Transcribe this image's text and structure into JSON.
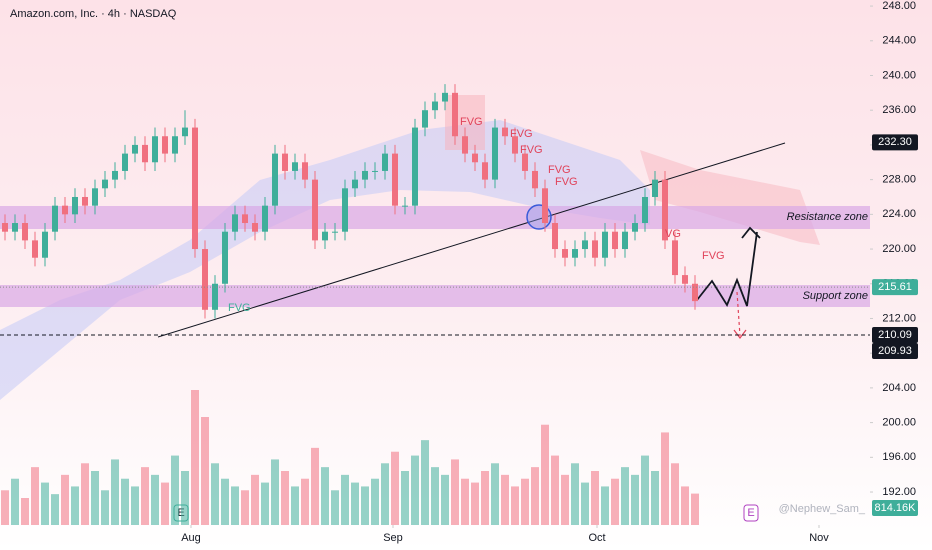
{
  "chart_data": {
    "type": "candlestick",
    "title": "Amazon.com, Inc. · 4h · NASDAQ",
    "open": [
      223,
      222,
      223,
      221,
      219,
      222,
      225,
      224,
      226,
      225,
      227,
      228,
      229,
      231,
      232,
      230,
      233,
      231,
      233,
      234,
      220,
      213,
      216,
      222,
      224,
      223,
      222,
      225,
      231,
      229,
      230,
      228,
      221,
      222,
      222,
      227,
      228,
      229,
      229,
      231,
      225,
      225,
      234,
      236,
      237,
      238,
      233,
      231,
      230,
      228,
      234,
      233,
      231,
      229,
      227,
      223,
      220,
      219,
      220,
      221,
      219,
      222,
      220,
      222,
      223,
      226,
      228,
      221,
      217,
      216
    ],
    "high": [
      224,
      224,
      224,
      222,
      223,
      226,
      226,
      227,
      227,
      228,
      229,
      230,
      232,
      233,
      233,
      234,
      234,
      234,
      236,
      235,
      221,
      217,
      223,
      225,
      225,
      224,
      226,
      232,
      232,
      231,
      231,
      229,
      223,
      223,
      228,
      229,
      230,
      230,
      232,
      232,
      226,
      235,
      237,
      238,
      239,
      239,
      234,
      232,
      231,
      235,
      235,
      234,
      232,
      230,
      228,
      224,
      221,
      221,
      222,
      222,
      223,
      223,
      223,
      224,
      227,
      229,
      229,
      222,
      218,
      217
    ],
    "low": [
      221,
      221,
      220,
      218,
      218,
      221,
      223,
      223,
      224,
      224,
      226,
      227,
      228,
      230,
      229,
      229,
      230,
      230,
      232,
      219,
      212,
      212,
      215,
      221,
      222,
      221,
      221,
      224,
      228,
      228,
      227,
      220,
      220,
      221,
      221,
      226,
      227,
      228,
      228,
      224,
      224,
      224,
      233,
      235,
      236,
      232,
      230,
      229,
      227,
      227,
      232,
      230,
      228,
      226,
      222,
      219,
      218,
      218,
      219,
      218,
      218,
      219,
      219,
      221,
      222,
      225,
      220,
      216,
      215,
      213
    ],
    "close": [
      222,
      223,
      221,
      219,
      222,
      225,
      224,
      226,
      225,
      227,
      228,
      229,
      231,
      232,
      230,
      233,
      231,
      233,
      234,
      220,
      213,
      216,
      222,
      224,
      223,
      222,
      225,
      231,
      229,
      230,
      228,
      221,
      222,
      222,
      227,
      228,
      229,
      229,
      231,
      225,
      225,
      234,
      236,
      237,
      238,
      233,
      231,
      230,
      228,
      234,
      233,
      231,
      229,
      227,
      223,
      220,
      219,
      220,
      221,
      219,
      222,
      220,
      222,
      223,
      226,
      228,
      221,
      217,
      216,
      214
    ],
    "volume": [
      900,
      1200,
      700,
      1500,
      1100,
      800,
      1300,
      1000,
      1600,
      1400,
      900,
      1700,
      1200,
      1000,
      1500,
      1300,
      1100,
      1800,
      1400,
      3500,
      2800,
      1600,
      1200,
      1000,
      900,
      1300,
      1100,
      1700,
      1400,
      1000,
      1200,
      2000,
      1500,
      900,
      1300,
      1100,
      1000,
      1200,
      1600,
      1900,
      1400,
      1800,
      2200,
      1500,
      1300,
      1700,
      1200,
      1100,
      1400,
      1600,
      1300,
      1000,
      1200,
      1500,
      2600,
      1800,
      1300,
      1600,
      1100,
      1400,
      1000,
      1200,
      1500,
      1300,
      1800,
      1400,
      2400,
      1600,
      1000,
      814.16
    ],
    "volume_tag": "814.16K",
    "up_color": "#3fae9a",
    "down_color": "#f0707f",
    "xlim": [
      0,
      87
    ],
    "xticks": [
      {
        "value": 19.1,
        "label": "Aug"
      },
      {
        "value": 39.3,
        "label": "Sep"
      },
      {
        "value": 59.7,
        "label": "Oct"
      },
      {
        "value": 81.9,
        "label": "Nov"
      }
    ],
    "ylim": [
      188.2,
      248.7
    ],
    "yticks": [
      {
        "value": 192,
        "label": "192.00"
      },
      {
        "value": 196,
        "label": "196.00"
      },
      {
        "value": 200,
        "label": "200.00"
      },
      {
        "value": 204,
        "label": "204.00"
      },
      {
        "value": 208,
        "label": "208.00"
      },
      {
        "value": 212,
        "label": "212.00"
      },
      {
        "value": 216,
        "label": "216.00"
      },
      {
        "value": 220,
        "label": "220.00"
      },
      {
        "value": 224,
        "label": "224.00"
      },
      {
        "value": 228,
        "label": "228.00"
      },
      {
        "value": 232,
        "label": "232.00"
      },
      {
        "value": 236,
        "label": "236.00"
      },
      {
        "value": 240,
        "label": "240.00"
      },
      {
        "value": 244,
        "label": "244.00"
      },
      {
        "value": 248,
        "label": "248.00"
      }
    ],
    "price_tags": [
      {
        "value": 232.3,
        "label": "232.30",
        "color": "#131722"
      },
      {
        "value": 215.61,
        "label": "215.61",
        "color": "#3fae9a"
      },
      {
        "value": 210.09,
        "label": "210.09",
        "color": "#131722"
      },
      {
        "value": 209.93,
        "label": "209.93",
        "color": "#131722"
      }
    ],
    "zones": [
      "Resistance zone",
      "Support zone"
    ],
    "fvg_labels": [
      "FVG",
      "FVG",
      "FVG",
      "FVG",
      "FVG",
      "FVG",
      "VG",
      "FVG"
    ],
    "event_icons": [
      "E",
      "E"
    ],
    "watermark": "@Nephew_Sam_"
  }
}
